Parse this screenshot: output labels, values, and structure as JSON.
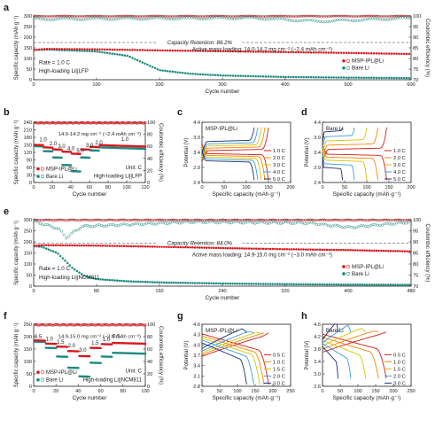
{
  "figure": {
    "panel_letters": [
      "a",
      "b",
      "c",
      "d",
      "e",
      "f",
      "g",
      "h"
    ],
    "colors": {
      "msp": "#d7191c",
      "bare": "#1a8a80",
      "axis": "#222222"
    },
    "rate_palette": [
      "#d7191c",
      "#f08a00",
      "#d4c400",
      "#3a9fd8",
      "#1a2f77"
    ]
  },
  "chart_data": [
    {
      "id": "a",
      "type": "scatter",
      "subtype": "long-cycle",
      "xlabel": "Cycle number",
      "ylabel": "Specific capacity (mAh g⁻¹)",
      "y2label": "Coulombic efficiency (%)",
      "xlim": [
        0,
        600
      ],
      "ylim": [
        0,
        300
      ],
      "y2lim": [
        70,
        100
      ],
      "xticks": [
        0,
        100,
        200,
        300,
        400,
        500,
        600
      ],
      "yticks": [
        0,
        50,
        100,
        150,
        200,
        250,
        300
      ],
      "y2ticks": [
        70,
        75,
        80,
        85,
        90,
        95,
        100
      ],
      "annotations": {
        "retention": "Capacity Retention: 86.2%",
        "loading": "Active mass loading: 14.0-14.2 mg cm⁻² (~2.4 mAh cm⁻²)",
        "rate": "Rate = 1.0 C",
        "cell": "High-loading Li||LFP"
      },
      "retention_line_y": 175,
      "series": [
        {
          "name": "MSP-IPL@Li",
          "kind": "capacity",
          "points": [
            [
              1,
              140
            ],
            [
              20,
              145
            ],
            [
              100,
              143
            ],
            [
              200,
              138
            ],
            [
              300,
              134
            ],
            [
              400,
              130
            ],
            [
              500,
              126
            ],
            [
              600,
              121
            ]
          ]
        },
        {
          "name": "Bare Li",
          "kind": "capacity",
          "points": [
            [
              1,
              140
            ],
            [
              20,
              142
            ],
            [
              100,
              133
            ],
            [
              150,
              112
            ],
            [
              180,
              72
            ],
            [
              200,
              45
            ],
            [
              250,
              28
            ],
            [
              300,
              20
            ],
            [
              400,
              13
            ],
            [
              500,
              10
            ],
            [
              600,
              8
            ]
          ]
        },
        {
          "name": "MSP-IPL@Li CE",
          "kind": "ce",
          "points": [
            [
              1,
              99.8
            ],
            [
              600,
              99.8
            ]
          ]
        },
        {
          "name": "Bare Li CE",
          "kind": "ce",
          "points": [
            [
              1,
              98.5
            ],
            [
              200,
              98.8
            ],
            [
              350,
              99.0
            ],
            [
              450,
              97.5
            ],
            [
              600,
              99.0
            ]
          ]
        }
      ],
      "legend": [
        "MSP-IPL@Li",
        "Bare Li"
      ]
    },
    {
      "id": "b",
      "type": "scatter",
      "subtype": "rate",
      "xlabel": "Cycle number",
      "ylabel": "Specific capacity (mAh g⁻¹)",
      "y2label": "Coulombic efficiency (%)",
      "xlim": [
        0,
        120
      ],
      "ylim": [
        0,
        240
      ],
      "y2lim": [
        0,
        100
      ],
      "xticks": [
        0,
        20,
        40,
        60,
        80,
        100,
        120
      ],
      "yticks": [
        0,
        30,
        60,
        90,
        120,
        150,
        180,
        210,
        240
      ],
      "y2ticks": [
        0,
        20,
        40,
        60,
        80,
        100
      ],
      "annotations": {
        "loading": "14.0-14.2 mg cm⁻² (~2.4 mAh cm⁻²)",
        "unit": "Unit: C",
        "cell": "High-loading Li||LFP"
      },
      "rate_labels": [
        {
          "x": 10,
          "y": 164,
          "t": "1.0"
        },
        {
          "x": 21,
          "y": 149,
          "t": "2.0"
        },
        {
          "x": 30,
          "y": 137,
          "t": "3.0"
        },
        {
          "x": 40,
          "y": 128,
          "t": "4.0"
        },
        {
          "x": 50,
          "y": 120,
          "t": "5.0"
        },
        {
          "x": 60,
          "y": 141,
          "t": "3.0"
        },
        {
          "x": 70,
          "y": 152,
          "t": "2.0"
        },
        {
          "x": 98,
          "y": 166,
          "t": "1.0"
        }
      ],
      "series": [
        {
          "name": "MSP-IPL@Li",
          "kind": "capacity",
          "steps": [
            [
              1,
              10,
              150
            ],
            [
              11,
              20,
              140
            ],
            [
              21,
              30,
              132
            ],
            [
              31,
              40,
              123
            ],
            [
              41,
              50,
              115
            ],
            [
              51,
              60,
              132
            ],
            [
              61,
              70,
              142
            ],
            [
              71,
              120,
              149
            ]
          ]
        },
        {
          "name": "Bare Li",
          "kind": "capacity",
          "steps": [
            [
              1,
              10,
              145
            ],
            [
              11,
              20,
              125
            ],
            [
              21,
              30,
              100
            ],
            [
              31,
              40,
              70
            ],
            [
              41,
              50,
              45
            ],
            [
              51,
              60,
              100
            ],
            [
              61,
              70,
              128
            ],
            [
              71,
              120,
              140
            ]
          ]
        },
        {
          "name": "CE",
          "kind": "ce",
          "points": [
            [
              1,
              99
            ],
            [
              120,
              99
            ]
          ]
        }
      ],
      "legend": [
        "MSP-IPL@Li",
        "Bare Li"
      ]
    },
    {
      "id": "c",
      "type": "line",
      "subtype": "voltage",
      "xlabel": "Specific capacity (mAh·g⁻¹)",
      "ylabel": "Potential (V)",
      "xlim": [
        0,
        200
      ],
      "ylim": [
        2.4,
        4.4
      ],
      "xticks": [
        0,
        50,
        100,
        150,
        200
      ],
      "yticks": [
        2.4,
        2.9,
        3.4,
        3.9,
        4.4
      ],
      "title_text": "MSP-IPL@Li",
      "series": [
        {
          "name": "1.0 C",
          "capacity": 150,
          "charge": 3.48,
          "discharge": 3.34
        },
        {
          "name": "2.0 C",
          "capacity": 142,
          "charge": 3.56,
          "discharge": 3.28
        },
        {
          "name": "3.0 C",
          "capacity": 134,
          "charge": 3.63,
          "discharge": 3.22
        },
        {
          "name": "4.0 C",
          "capacity": 126,
          "charge": 3.7,
          "discharge": 3.16
        },
        {
          "name": "5.0 C",
          "capacity": 118,
          "charge": 3.78,
          "discharge": 3.1
        }
      ]
    },
    {
      "id": "d",
      "type": "line",
      "subtype": "voltage",
      "xlabel": "Specific capacity (mAh·g⁻¹)",
      "ylabel": "Potential (V)",
      "xlim": [
        0,
        200
      ],
      "ylim": [
        2.4,
        4.4
      ],
      "xticks": [
        0,
        50,
        100,
        150,
        200
      ],
      "yticks": [
        2.4,
        2.9,
        3.4,
        3.9,
        4.4
      ],
      "title_text": "Bare Li",
      "series": [
        {
          "name": "1.0 C",
          "capacity": 145,
          "charge": 3.52,
          "discharge": 3.32
        },
        {
          "name": "2.0 C",
          "capacity": 125,
          "charge": 3.66,
          "discharge": 3.22
        },
        {
          "name": "3.0 C",
          "capacity": 100,
          "charge": 3.8,
          "discharge": 3.12
        },
        {
          "name": "4.0 C",
          "capacity": 72,
          "charge": 3.94,
          "discharge": 3.0
        },
        {
          "name": "5.0 C",
          "capacity": 45,
          "charge": 4.1,
          "discharge": 2.88
        }
      ]
    },
    {
      "id": "e",
      "type": "scatter",
      "subtype": "long-cycle",
      "xlabel": "Cycle number",
      "ylabel": "Specific capacity (mAh g⁻¹)",
      "y2label": "Coulombic efficiency (%)",
      "xlim": [
        0,
        480
      ],
      "ylim": [
        0,
        300
      ],
      "y2lim": [
        70,
        100
      ],
      "xticks": [
        0,
        80,
        160,
        240,
        320,
        400,
        480
      ],
      "yticks": [
        0,
        50,
        100,
        150,
        200,
        250,
        300
      ],
      "y2ticks": [
        70,
        75,
        80,
        85,
        90,
        95,
        100
      ],
      "annotations": {
        "retention": "Capacity Retention: 84.0%",
        "loading": "Active mass loading: 14.9-15.0 mg cm⁻² (~3.0 mAh cm⁻²)",
        "rate": "Rate = 1.0 C",
        "cell": "High-loading Li||NCM811"
      },
      "retention_line_y": 195,
      "series": [
        {
          "name": "MSP-IPL@Li",
          "kind": "capacity",
          "points": [
            [
              1,
              182
            ],
            [
              10,
              185
            ],
            [
              80,
              183
            ],
            [
              160,
              178
            ],
            [
              240,
              172
            ],
            [
              320,
              167
            ],
            [
              400,
              163
            ],
            [
              480,
              157
            ]
          ]
        },
        {
          "name": "Bare Li",
          "kind": "capacity",
          "points": [
            [
              1,
              180
            ],
            [
              10,
              178
            ],
            [
              30,
              150
            ],
            [
              50,
              80
            ],
            [
              65,
              45
            ],
            [
              80,
              32
            ],
            [
              120,
              22
            ],
            [
              160,
              17
            ],
            [
              240,
              12
            ],
            [
              320,
              9
            ],
            [
              400,
              7
            ],
            [
              480,
              6
            ]
          ]
        },
        {
          "name": "MSP-IPL@Li CE",
          "kind": "ce",
          "points": [
            [
              1,
              99.8
            ],
            [
              480,
              99.8
            ]
          ]
        },
        {
          "name": "Bare Li CE",
          "kind": "ce",
          "points": [
            [
              1,
              99
            ],
            [
              30,
              96
            ],
            [
              40,
              92
            ],
            [
              60,
              97
            ],
            [
              200,
              99
            ],
            [
              350,
              98.5
            ],
            [
              400,
              96.5
            ],
            [
              480,
              99
            ]
          ]
        }
      ],
      "legend": [
        "MSP-IPL@Li",
        "Bare Li"
      ]
    },
    {
      "id": "f",
      "type": "scatter",
      "subtype": "rate",
      "xlabel": "Cycle number",
      "ylabel": "Specific capacity (mAh g⁻¹)",
      "y2label": "Coulombic efficiency (%)",
      "xlim": [
        0,
        100
      ],
      "ylim": [
        0,
        250
      ],
      "y2lim": [
        0,
        100
      ],
      "xticks": [
        0,
        20,
        40,
        60,
        80,
        100
      ],
      "yticks": [
        0,
        50,
        100,
        150,
        200,
        250
      ],
      "y2ticks": [
        0,
        20,
        40,
        60,
        80,
        100
      ],
      "annotations": {
        "loading": "14.9-15.0 mg cm⁻² (~3.0 mAh cm⁻²)",
        "unit": "Unit: C",
        "cell": "High-loading Li||NCM811"
      },
      "rate_labels": [
        {
          "x": 4,
          "y": 193,
          "t": "0.5"
        },
        {
          "x": 14,
          "y": 184,
          "t": "1.0"
        },
        {
          "x": 24,
          "y": 172,
          "t": "1.5"
        },
        {
          "x": 34,
          "y": 157,
          "t": "2.0"
        },
        {
          "x": 44,
          "y": 140,
          "t": "3.0"
        },
        {
          "x": 55,
          "y": 168,
          "t": "1.5"
        },
        {
          "x": 65,
          "y": 182,
          "t": "1.0"
        },
        {
          "x": 74,
          "y": 195,
          "t": "0.5"
        }
      ],
      "series": [
        {
          "name": "MSP-IPL@Li",
          "kind": "capacity",
          "steps": [
            [
              1,
              10,
              185
            ],
            [
              11,
              20,
              172
            ],
            [
              21,
              30,
              160
            ],
            [
              31,
              40,
              142
            ],
            [
              41,
              50,
              122
            ],
            [
              51,
              60,
              155
            ],
            [
              61,
              70,
              170
            ],
            [
              71,
              100,
              175
            ]
          ]
        },
        {
          "name": "Bare Li",
          "kind": "capacity",
          "steps": [
            [
              1,
              10,
              180
            ],
            [
              11,
              20,
              155
            ],
            [
              21,
              30,
              120
            ],
            [
              31,
              40,
              75
            ],
            [
              41,
              50,
              40
            ],
            [
              51,
              60,
              95
            ],
            [
              61,
              70,
              120
            ],
            [
              71,
              100,
              135
            ]
          ]
        },
        {
          "name": "CE",
          "kind": "ce",
          "points": [
            [
              1,
              99
            ],
            [
              100,
              99
            ]
          ]
        }
      ],
      "legend": [
        "MSP-IPL@Li",
        "Bare Li"
      ]
    },
    {
      "id": "g",
      "type": "line",
      "subtype": "voltage",
      "xlabel": "Specific capacity (mAh·g⁻¹)",
      "ylabel": "Potential (V)",
      "xlim": [
        0,
        250
      ],
      "ylim": [
        2.8,
        4.6
      ],
      "xticks": [
        0,
        50,
        100,
        150,
        200,
        250
      ],
      "yticks": [
        2.8,
        3.1,
        3.4,
        3.7,
        4.0,
        4.3,
        4.6
      ],
      "title_text": "MSP-IPL@Li",
      "series": [
        {
          "name": "0.5 C",
          "capacity": 188,
          "charge": 3.75,
          "discharge": 3.7
        },
        {
          "name": "1.0 C",
          "capacity": 175,
          "charge": 3.8,
          "discharge": 3.64
        },
        {
          "name": "1.5 C",
          "capacity": 163,
          "charge": 3.85,
          "discharge": 3.58
        },
        {
          "name": "2.0 C",
          "capacity": 146,
          "charge": 3.9,
          "discharge": 3.52
        },
        {
          "name": "3.0 C",
          "capacity": 126,
          "charge": 3.98,
          "discharge": 3.44
        }
      ]
    },
    {
      "id": "h",
      "type": "line",
      "subtype": "voltage",
      "xlabel": "Specific capacity (mAh·g⁻¹)",
      "ylabel": "Potential (V)",
      "xlim": [
        0,
        250
      ],
      "ylim": [
        2.6,
        4.6
      ],
      "xticks": [
        0,
        50,
        100,
        150,
        200,
        250
      ],
      "yticks": [
        2.6,
        3.0,
        3.4,
        3.8,
        4.2,
        4.6
      ],
      "title_text": "Bare Li",
      "series": [
        {
          "name": "0.5 C",
          "capacity": 180,
          "charge": 3.78,
          "discharge": 3.66
        },
        {
          "name": "1.0 C",
          "capacity": 158,
          "charge": 3.88,
          "discharge": 3.56
        },
        {
          "name": "1.5 C",
          "capacity": 122,
          "charge": 3.98,
          "discharge": 3.46
        },
        {
          "name": "2.0 C",
          "capacity": 80,
          "charge": 4.08,
          "discharge": 3.36
        },
        {
          "name": "3.0 C",
          "capacity": 44,
          "charge": 4.18,
          "discharge": 3.26
        }
      ]
    }
  ]
}
